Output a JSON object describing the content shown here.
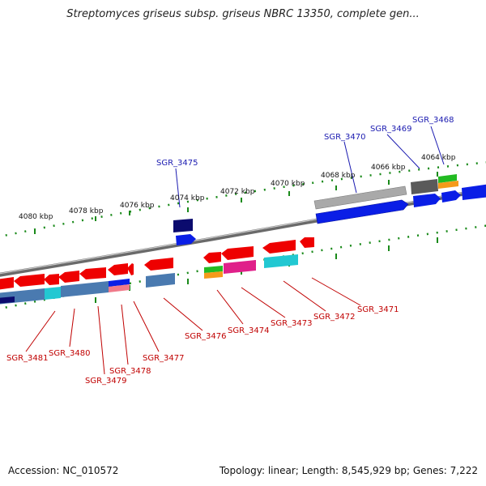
{
  "title": "Streptomyces griseus subsp. griseus NBRC 13350, complete gen...",
  "footer": {
    "accession": "Accession: NC_010572",
    "summary": "Topology: linear; Length: 8,545,929 bp; Genes: 7,222"
  },
  "colors": {
    "red": "#ee0000",
    "blue": "#0a1ee6",
    "navy": "#0b0b6e",
    "steelblue": "#4a7ab0",
    "cyan": "#22c8d2",
    "green": "#22bb22",
    "orange": "#f59a1a",
    "magenta": "#e0208a",
    "pink": "#f07a8a",
    "gray": "#a9a9a9",
    "darkgray": "#5a5a5a",
    "ticks": "#1a8a1a",
    "label_blue": "#1a1ab0",
    "label_red": "#c00000"
  },
  "scale_ticks": [
    "4064 kbp",
    "4066 kbp",
    "4068 kbp",
    "4070 kbp",
    "4072 kbp",
    "4074 kbp",
    "4076 kbp",
    "4078 kbp",
    "4080 kbp"
  ],
  "gene_labels_top": [
    "SGR_3468",
    "SGR_3469",
    "SGR_3470",
    "SGR_3475"
  ],
  "gene_labels_bottom": [
    "SGR_3471",
    "SGR_3472",
    "SGR_3473",
    "SGR_3474",
    "SGR_3476",
    "SGR_3477",
    "SGR_3478",
    "SGR_3479",
    "SGR_3480",
    "SGR_3481"
  ]
}
